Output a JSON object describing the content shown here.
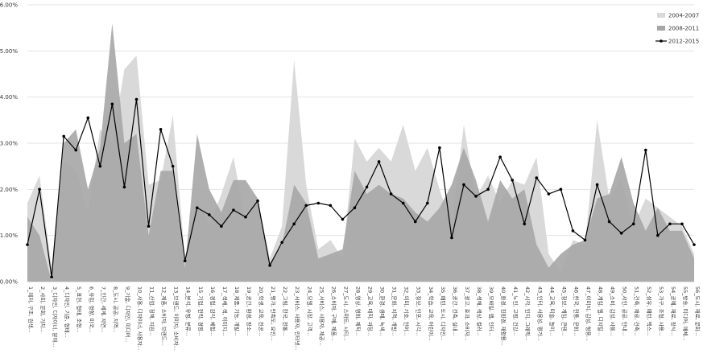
{
  "chart_data": {
    "type": "area",
    "ylim": [
      0,
      6
    ],
    "yticks": [
      "0.00%",
      "1.00%",
      "2.00%",
      "3.00%",
      "4.00%",
      "5.00%",
      "6.00%"
    ],
    "grid": true,
    "legend_position": "top-right",
    "categories": [
      "1_레저, 구조, 검색...",
      "2_사회, 문화, 가치...",
      "3_디자인, 디자이너, 분야...",
      "4_디자인, 기준, 형태...",
      "5_표현, 형태, 조형...",
      "6_유럽, 영향, 미국...",
      "7_인간, 세계, 자연...",
      "8_도시, 공공, 지역...",
      "9_기술, 디자인, 미디어...",
      "10_사용, 디자이너, 사용자...",
      "11_산업, 정책, 지원...",
      "12_제품, 소비자, 브랜드...",
      "13_브랜드, 이미지, 소비자...",
      "14_분석, 유형, 분류...",
      "15_기업, 전략, 경영...",
      "16_경험, 감각, 체험...",
      "17_색채, 색, 이미지...",
      "18_제품, 기능, 개발...",
      "19_공간, 환경, 장소...",
      "20_학생, 교육, 전공...",
      "21_평가, 만족도, 요인...",
      "22_그림, 한국, 전통...",
      "23_서비스, 사용자, 인터넷...",
      "24_모델, 시장, 고객...",
      "25_서비스, 사용자, 제공...",
      "26_소비자, 구매, 제품...",
      "27_도시, 스마트, 시티...",
      "28_영상, 영화, 제작...",
      "29_교육, 대학, 과정...",
      "30_환경, 생태, 녹색...",
      "31_문화, 지역, 개발...",
      "32_의미, 기호, 언어...",
      "33_정보, 인포, 시각...",
      "34_학습, 교육, 어린이...",
      "35_패턴, 도시, 디자인...",
      "36_공간, 건축, 실내...",
      "37_광고, 효과, 소비자...",
      "38_색채, 색상, 컬러...",
      "39_모바일, 앱, 인터...",
      "40_환경, 친환경, 재활용...",
      "41_노인, 고령, 건강...",
      "42_시각, 인지, 그래픽...",
      "43_인터, 사용성, 평가...",
      "44_교육, 미술, 놀이...",
      "45_정보, 게임, 콘텐...",
      "46_한국, 전통, 문화...",
      "47_이미지, 감성, 형용...",
      "48_게임, 웹, 디지털...",
      "49_소비, 감성, 사용...",
      "50_사인, 공공, 안내...",
      "51_건축, 재료, 건축...",
      "52_섬유, 패턴, 텍스...",
      "53_가구, 조형, 사용...",
      "54_공예, 재료, 장식...",
      "55_방송, 미디어, 매체...",
      "56_도시, 재료, 문화..."
    ],
    "series": [
      {
        "name": "2004-2007",
        "color": "#d9d9d9",
        "values": [
          1.7,
          2.3,
          0.3,
          2.6,
          2.4,
          1.5,
          3.3,
          3.0,
          4.6,
          4.9,
          2.1,
          2.2,
          3.6,
          0.5,
          1.8,
          1.2,
          1.9,
          2.7,
          1.3,
          1.8,
          0.5,
          1.2,
          4.8,
          2.1,
          0.7,
          0.9,
          0.5,
          3.1,
          2.6,
          2.9,
          2.6,
          3.4,
          2.4,
          2.9,
          2.0,
          1.2,
          3.4,
          1.8,
          2.3,
          1.7,
          2.2,
          2.1,
          2.7,
          0.6,
          0.2,
          0.9,
          0.8,
          3.5,
          1.8,
          2.2,
          1.2,
          1.8,
          1.6,
          1.4,
          1.2,
          0.6
        ]
      },
      {
        "name": "2008-2011",
        "color": "#a6a6a6",
        "values": [
          1.4,
          1.0,
          0.0,
          3.0,
          3.3,
          2.0,
          2.9,
          5.6,
          3.0,
          3.2,
          1.0,
          2.4,
          2.4,
          0.3,
          3.2,
          2.0,
          1.5,
          2.2,
          2.2,
          1.8,
          0.4,
          0.8,
          2.1,
          1.7,
          0.5,
          0.6,
          0.7,
          2.4,
          1.9,
          2.1,
          1.9,
          1.8,
          1.5,
          1.3,
          1.6,
          2.1,
          2.9,
          2.2,
          1.3,
          2.2,
          1.8,
          2.0,
          0.8,
          0.3,
          0.6,
          0.8,
          0.9,
          1.8,
          1.9,
          2.7,
          1.7,
          1.1,
          1.6,
          1.1,
          1.1,
          0.5
        ]
      },
      {
        "name": "2012-2015",
        "color": "#000000",
        "values": [
          0.8,
          2.0,
          0.1,
          3.15,
          2.85,
          3.55,
          2.5,
          3.85,
          2.05,
          3.95,
          1.2,
          3.3,
          2.5,
          0.45,
          1.6,
          1.45,
          1.2,
          1.55,
          1.4,
          1.75,
          0.35,
          0.85,
          1.25,
          1.65,
          1.7,
          1.65,
          1.35,
          1.6,
          2.05,
          2.6,
          1.9,
          1.7,
          1.3,
          1.7,
          2.9,
          0.95,
          2.1,
          1.85,
          2.0,
          2.7,
          2.2,
          1.25,
          2.25,
          1.9,
          2.0,
          1.1,
          0.9,
          2.1,
          1.3,
          1.05,
          1.25,
          2.85,
          1.0,
          1.25,
          1.25,
          0.8
        ]
      }
    ]
  }
}
